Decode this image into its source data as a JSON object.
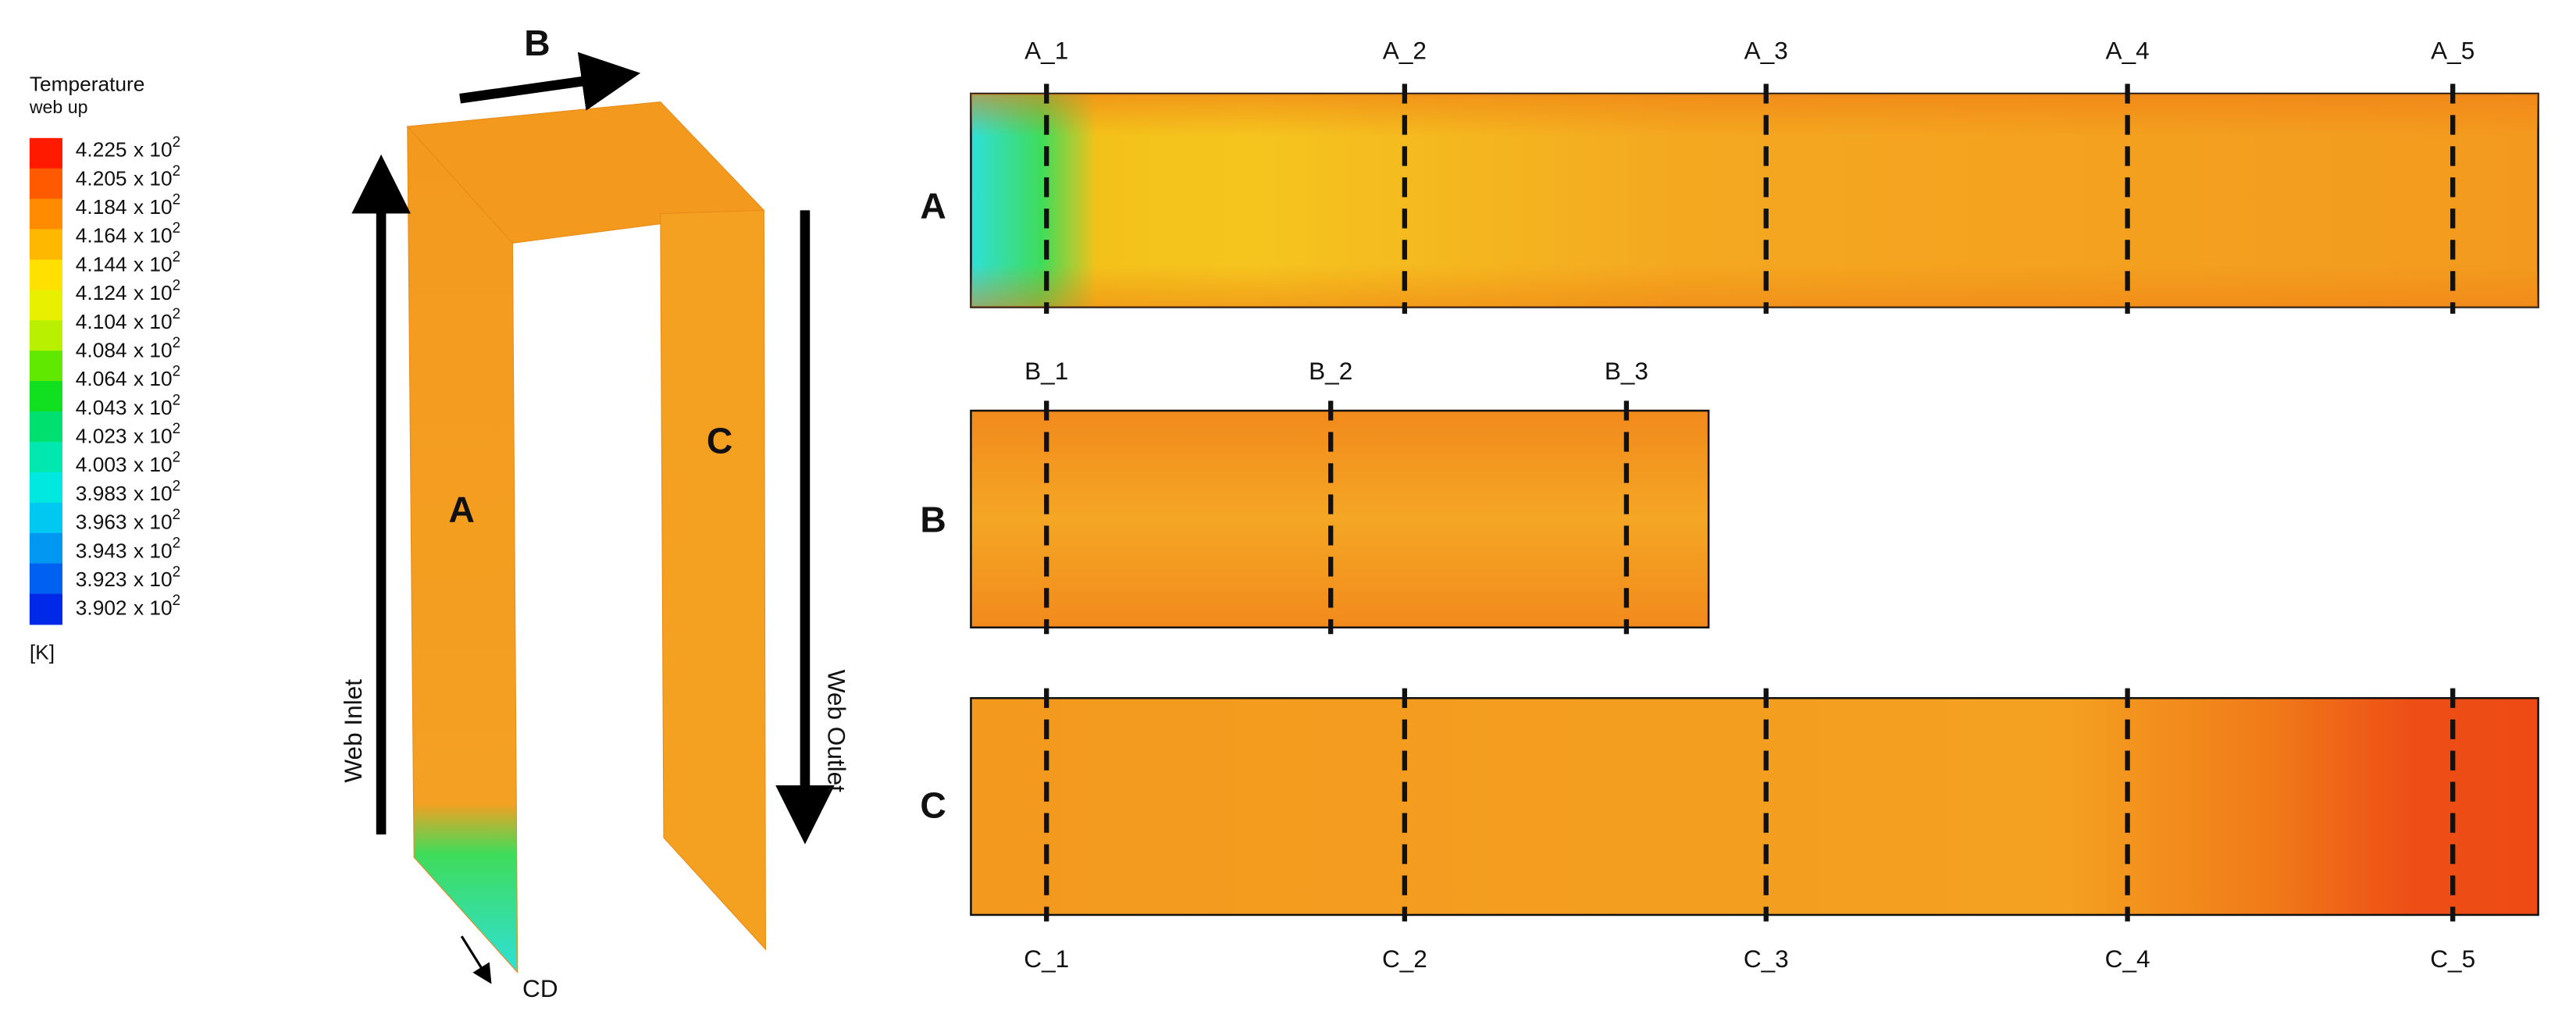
{
  "legend": {
    "title": "Temperature",
    "subtitle": "web up",
    "levels": [
      "4.225",
      "4.205",
      "4.184",
      "4.164",
      "4.144",
      "4.124",
      "4.104",
      "4.084",
      "4.064",
      "4.043",
      "4.023",
      "4.003",
      "3.983",
      "3.963",
      "3.943",
      "3.923",
      "3.902"
    ],
    "multiplier": "x 10",
    "exponent": "2",
    "unit": "[K]"
  },
  "geometry": {
    "top_label": "B",
    "left_label": "A",
    "right_label": "C",
    "inlet": "Web Inlet",
    "outlet": "Web Outlet",
    "direction": "CD"
  },
  "panels": [
    {
      "label": "A",
      "sections": [
        "A_1",
        "A_2",
        "A_3",
        "A_4",
        "A_5"
      ]
    },
    {
      "label": "B",
      "sections": [
        "B_1",
        "B_2",
        "B_3"
      ]
    },
    {
      "label": "C",
      "sections": [
        "C_1",
        "C_2",
        "C_3",
        "C_4",
        "C_5"
      ]
    }
  ]
}
